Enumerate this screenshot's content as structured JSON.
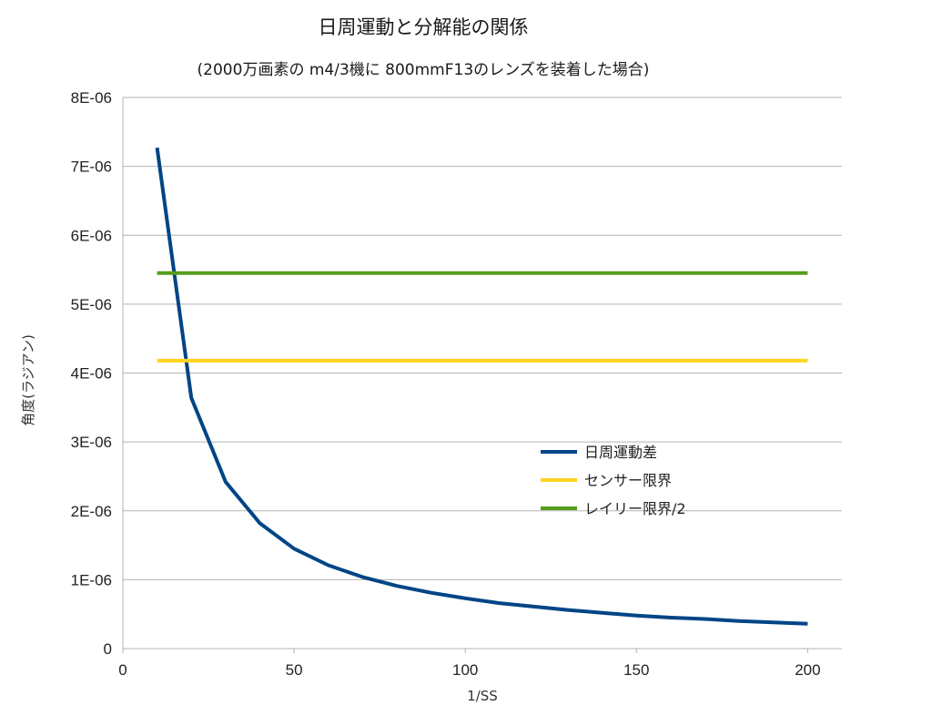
{
  "title": "日周運動と分解能の関係",
  "subtitle": "(2000万画素の m4/3機に 800mmF13のレンズを装着した場合)",
  "chart_data": {
    "type": "line",
    "xlabel": "1/SS",
    "ylabel": "角度(ラジアン)",
    "xlim": [
      0,
      210
    ],
    "ylim": [
      0,
      8e-06
    ],
    "x_ticks": [
      "0",
      "50",
      "100",
      "150",
      "200"
    ],
    "y_ticks": [
      "0",
      "1E-06",
      "2E-06",
      "3E-06",
      "4E-06",
      "5E-06",
      "6E-06",
      "7E-06",
      "8E-06"
    ],
    "grid": "horizontal",
    "legend_position": "right-middle",
    "series": [
      {
        "name": "日周運動差",
        "color": "#004586",
        "x": [
          10,
          20,
          30,
          40,
          50,
          60,
          70,
          80,
          90,
          100,
          110,
          120,
          130,
          140,
          150,
          160,
          170,
          180,
          190,
          200
        ],
        "values": [
          7.27e-06,
          3.64e-06,
          2.42e-06,
          1.82e-06,
          1.45e-06,
          1.21e-06,
          1.04e-06,
          9.1e-07,
          8.1e-07,
          7.3e-07,
          6.6e-07,
          6.1e-07,
          5.6e-07,
          5.2e-07,
          4.8e-07,
          4.5e-07,
          4.3e-07,
          4e-07,
          3.8e-07,
          3.6e-07
        ]
      },
      {
        "name": "センサー限界",
        "color": "#ffd320",
        "x": [
          10,
          200
        ],
        "values": [
          4.18e-06,
          4.18e-06
        ]
      },
      {
        "name": "レイリー限界/2",
        "color": "#579d1c",
        "x": [
          10,
          200
        ],
        "values": [
          5.45e-06,
          5.45e-06
        ]
      }
    ]
  }
}
